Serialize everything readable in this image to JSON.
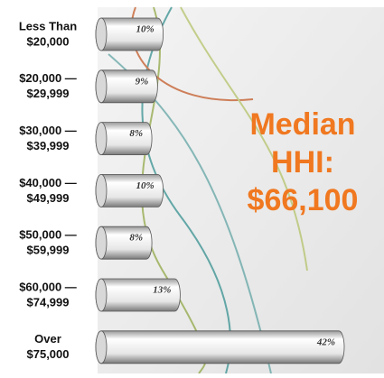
{
  "chart_data": {
    "type": "bar",
    "orientation": "horizontal",
    "categories": [
      [
        "Less Than",
        "$20,000"
      ],
      [
        "$20,000 —",
        "$29,999"
      ],
      [
        "$30,000 —",
        "$39,999"
      ],
      [
        "$40,000 —",
        "$49,999"
      ],
      [
        "$50,000 —",
        "$59,999"
      ],
      [
        "$60,000 —",
        "$74,999"
      ],
      [
        "Over",
        "$75,000"
      ]
    ],
    "values": [
      10,
      9,
      8,
      10,
      8,
      13,
      42
    ],
    "value_labels": [
      "10%",
      "9%",
      "8%",
      "10%",
      "8%",
      "13%",
      "42%"
    ],
    "color": "#e8e8e8",
    "annotation": {
      "lines": [
        "Median",
        "HHI:",
        "$66,100"
      ],
      "color": "#f07820"
    }
  }
}
